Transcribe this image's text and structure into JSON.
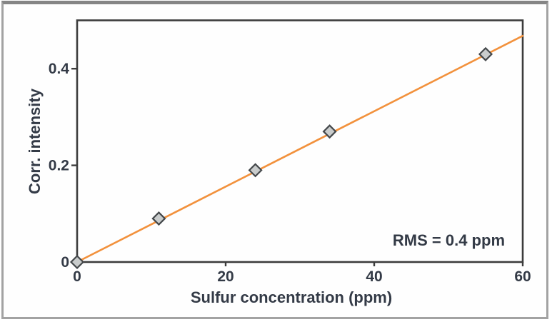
{
  "chart_data": {
    "type": "scatter",
    "title": "",
    "xlabel": "Sulfur concentration (ppm)",
    "ylabel": "Corr. intensity",
    "annotation": "RMS = 0.4 ppm",
    "xlim": [
      0,
      60
    ],
    "ylim": [
      0,
      0.5
    ],
    "grid": false,
    "legend": null,
    "xticks": {
      "values": [
        0,
        20,
        40,
        60
      ],
      "labels": [
        "0",
        "20",
        "40",
        "60"
      ]
    },
    "yticks": {
      "values": [
        0,
        0.2,
        0.4
      ],
      "labels": [
        "0",
        "0.2",
        "0.4"
      ]
    },
    "points": [
      {
        "x": 0,
        "y": 0
      },
      {
        "x": 11,
        "y": 0.09
      },
      {
        "x": 24,
        "y": 0.19
      },
      {
        "x": 34,
        "y": 0.27
      },
      {
        "x": 55,
        "y": 0.43
      }
    ],
    "fit_line": {
      "x_start": 0,
      "y_start": 0,
      "x_end": 60,
      "y_end": 0.468
    },
    "colors": {
      "line": "#f2913c",
      "marker_fill": "#c9cccc",
      "marker_stroke": "#43474a",
      "axis": "#3c3c3c",
      "text": "#333a46",
      "frame_border": "#a2a2a2",
      "frame_border_top": "#858585",
      "background": "#fefefe"
    }
  }
}
